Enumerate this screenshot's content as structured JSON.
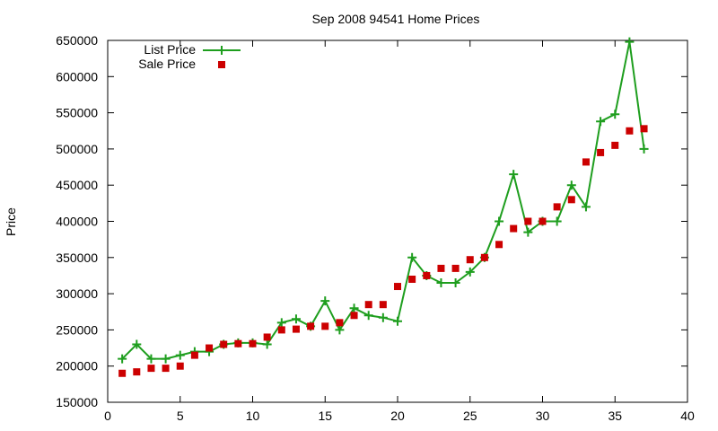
{
  "chart_data": {
    "type": "line",
    "title": "Sep 2008 94541 Home Prices",
    "xlabel": "",
    "ylabel": "Price",
    "xlim": [
      0,
      40
    ],
    "ylim": [
      150000,
      650000
    ],
    "x_ticks": [
      "0",
      "5",
      "10",
      "15",
      "20",
      "25",
      "30",
      "35",
      "40"
    ],
    "y_ticks": [
      "150000",
      "200000",
      "250000",
      "300000",
      "350000",
      "400000",
      "450000",
      "500000",
      "550000",
      "600000",
      "650000"
    ],
    "grid": false,
    "legend_position": "top-left",
    "series": [
      {
        "name": "List Price",
        "style": "line-with-plus-markers",
        "color": "#1e9e1e",
        "x": [
          1,
          2,
          3,
          4,
          5,
          6,
          7,
          8,
          9,
          10,
          11,
          12,
          13,
          14,
          15,
          16,
          17,
          18,
          19,
          20,
          21,
          22,
          23,
          24,
          25,
          26,
          27,
          28,
          29,
          30,
          31,
          32,
          33,
          34,
          35,
          36,
          37
        ],
        "values": [
          210000,
          230000,
          210000,
          210000,
          215000,
          220000,
          220000,
          230000,
          232000,
          232000,
          230000,
          260000,
          265000,
          255000,
          290000,
          250000,
          280000,
          270000,
          267000,
          262000,
          350000,
          325000,
          315000,
          315000,
          330000,
          350000,
          400000,
          465000,
          385000,
          400000,
          400000,
          450000,
          420000,
          538000,
          548000,
          648000,
          500000
        ]
      },
      {
        "name": "Sale Price",
        "style": "square-markers",
        "color": "#cc0000",
        "x": [
          1,
          2,
          3,
          4,
          5,
          6,
          7,
          8,
          9,
          10,
          11,
          12,
          13,
          14,
          15,
          16,
          17,
          18,
          19,
          20,
          21,
          22,
          23,
          24,
          25,
          26,
          27,
          28,
          29,
          30,
          31,
          32,
          33,
          34,
          35,
          36,
          37
        ],
        "values": [
          190000,
          192000,
          197000,
          197000,
          200000,
          215000,
          225000,
          230000,
          231000,
          231000,
          240000,
          250000,
          251000,
          255000,
          255000,
          260000,
          270000,
          285000,
          285000,
          310000,
          320000,
          325000,
          335000,
          335000,
          347000,
          350000,
          368000,
          390000,
          400000,
          400000,
          420000,
          430000,
          482000,
          495000,
          505000,
          525000,
          528000
        ]
      }
    ]
  }
}
